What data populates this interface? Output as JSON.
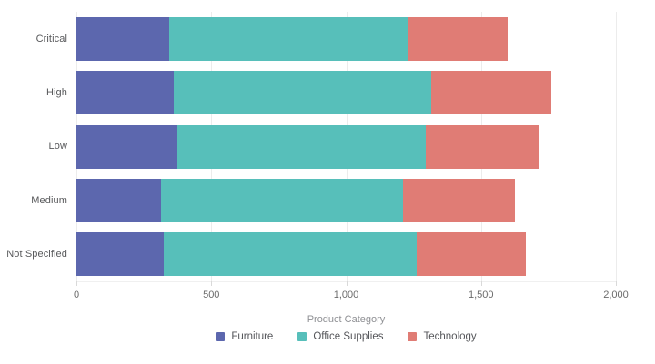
{
  "chart_data": {
    "type": "bar",
    "orientation": "horizontal",
    "stacked": true,
    "grid": "vertical",
    "categories": [
      "Critical",
      "High",
      "Low",
      "Medium",
      "Not Specified"
    ],
    "series": [
      {
        "name": "Furniture",
        "color": "#5c67ae",
        "values": [
          345,
          360,
          375,
          315,
          325
        ]
      },
      {
        "name": "Office Supplies",
        "color": "#57bfba",
        "values": [
          885,
          955,
          920,
          895,
          935
        ]
      },
      {
        "name": "Technology",
        "color": "#e07c75",
        "values": [
          370,
          445,
          420,
          415,
          405
        ]
      }
    ],
    "totals": [
      1600,
      1760,
      1715,
      1625,
      1665
    ],
    "xlim": [
      0,
      2000
    ],
    "x_tick_values": [
      0,
      500,
      1000,
      1500,
      2000
    ],
    "x_tick_labels": [
      "0",
      "500",
      "1,000",
      "1,500",
      "2,000"
    ],
    "legend_title": "Product Category",
    "legend_position": "bottom"
  },
  "legend": {
    "title": "Product Category"
  },
  "colors": {
    "gridline": "#ececec",
    "tick": "#d9d9d9",
    "axis_text": "#6b6b6b",
    "category_text": "#58595b",
    "legend_title_text": "#8f9094"
  }
}
